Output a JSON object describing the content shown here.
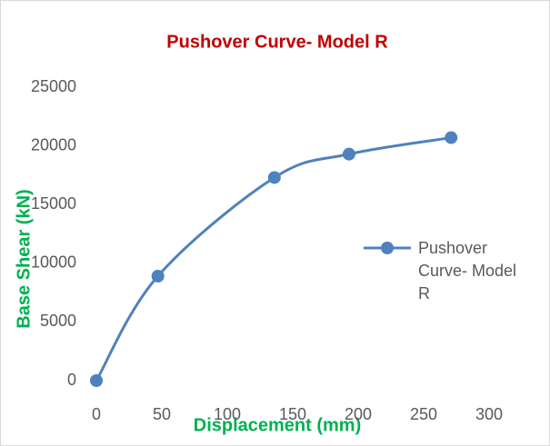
{
  "chart_data": {
    "type": "line",
    "title": "Pushover Curve- Model R",
    "x_label": "Displacement (mm)",
    "y_label": "Base Shear (kN)",
    "x": [
      0,
      47,
      136,
      193,
      271
    ],
    "series": [
      {
        "name": "Pushover Curve- Model R",
        "color": "#4f81bd",
        "values": [
          0,
          8900,
          17300,
          19300,
          20700
        ]
      }
    ],
    "xlim": [
      0,
      300
    ],
    "xticks": [
      0,
      50,
      100,
      150,
      200,
      250,
      300
    ],
    "ylim": [
      0,
      25000
    ],
    "yticks": [
      0,
      5000,
      10000,
      15000,
      20000,
      25000
    ],
    "grid": false,
    "legend": "right"
  }
}
